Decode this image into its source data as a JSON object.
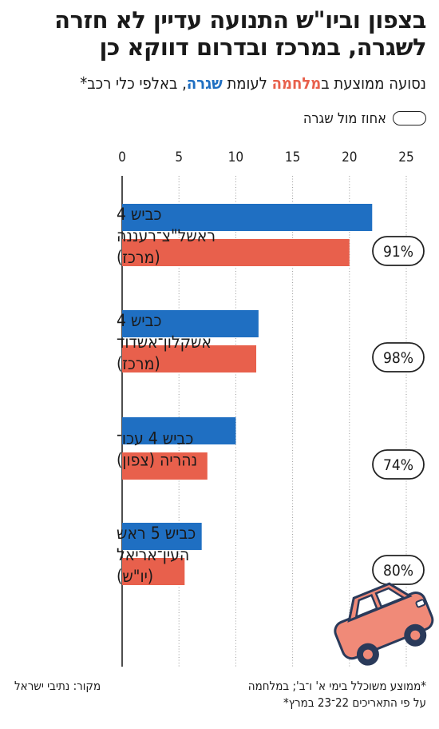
{
  "header": {
    "title": "בצפון וביו\"ש התנועה עדיין לא חזרה לשגרה, במרכז ובדרום דווקא כן",
    "subtitle_prefix": "נסועה ממוצעת ב",
    "subtitle_war": "מלחמה",
    "subtitle_middle": " לעומת ",
    "subtitle_routine": "שגרה",
    "subtitle_suffix": ", באלפי כלי רכב*"
  },
  "legend": {
    "label": "אחוז מול שגרה"
  },
  "colors": {
    "routine": "#1f6fc2",
    "war": "#e8604c",
    "grid": "#9a9a9a",
    "car": "#f08a78"
  },
  "chart_data": {
    "type": "bar",
    "orientation": "horizontal",
    "categories": [
      [
        "כביש 4",
        "ראשל\"צ־רעננה",
        "(מרכז)"
      ],
      [
        "כביש 4",
        "אשקלון־אשדוד",
        "(מרכז)"
      ],
      [
        "כביש 4 עכו־",
        "נהריה (צפון)"
      ],
      [
        "כביש 5 ראש",
        "העין־אריאל",
        "(יו\"ש)"
      ]
    ],
    "series": [
      {
        "name": "שגרה",
        "values": [
          22,
          12,
          10,
          7
        ]
      },
      {
        "name": "מלחמה",
        "values": [
          20,
          11.8,
          7.5,
          5.5
        ]
      }
    ],
    "percent_labels": [
      "91%",
      "98%",
      "74%",
      "80%"
    ],
    "xlim": [
      0,
      25
    ],
    "x_ticks": [
      0,
      5,
      10,
      15,
      20,
      25
    ],
    "grid": true
  },
  "footer": {
    "footnote_line1": "*ממוצע משוכלל בימי א' ו־ב'; במלחמה",
    "footnote_line2": "על פי התאריכים 22־23 במרץ*",
    "source": "מקור: נתיבי ישראל"
  }
}
